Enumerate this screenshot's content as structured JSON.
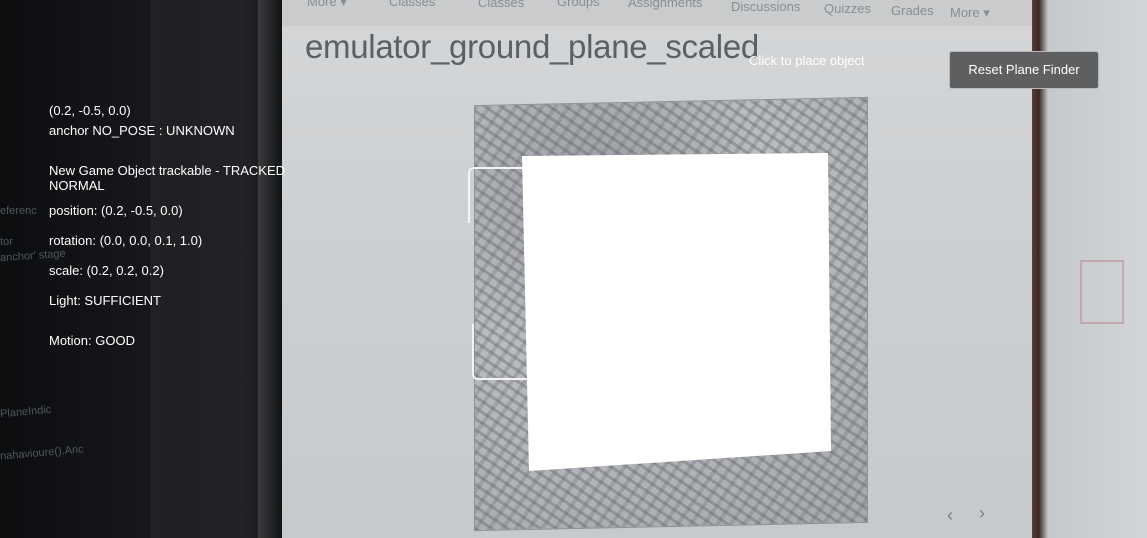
{
  "background": {
    "monitor_heading": "emulator_ground_plane_scaled",
    "nav_tabs": [
      "Grades",
      "Quizzes",
      "Assignments",
      "Discussions",
      "Groups",
      "Classes",
      "More ▾"
    ],
    "left_code_snippets": [
      "eferenc",
      "tor",
      "anchor' stage",
      "PlaneIndic",
      "nahavioure().Anc"
    ]
  },
  "overlay": {
    "anchor_position": "(0.2, -0.5, 0.0)",
    "anchor_status": "anchor NO_POSE : UNKNOWN",
    "trackable_status": "New Game Object trackable - TRACKED",
    "tracking_mode": "NORMAL",
    "position": "position: (0.2, -0.5, 0.0)",
    "rotation": "rotation: (0.0, 0.0, 0.1, 1.0)",
    "scale": "scale: (0.2, 0.2, 0.2)",
    "light": "Light: SUFFICIENT",
    "motion": "Motion: GOOD",
    "place_hint": "Click to place object",
    "reset_button": "Reset Plane Finder"
  },
  "icons": {
    "prev": "chevron-left-icon",
    "next": "chevron-right-icon"
  },
  "colors": {
    "overlay_text": "#ffffff",
    "button_bg": "#5e5f60",
    "plane_fill": "#ffffff"
  }
}
